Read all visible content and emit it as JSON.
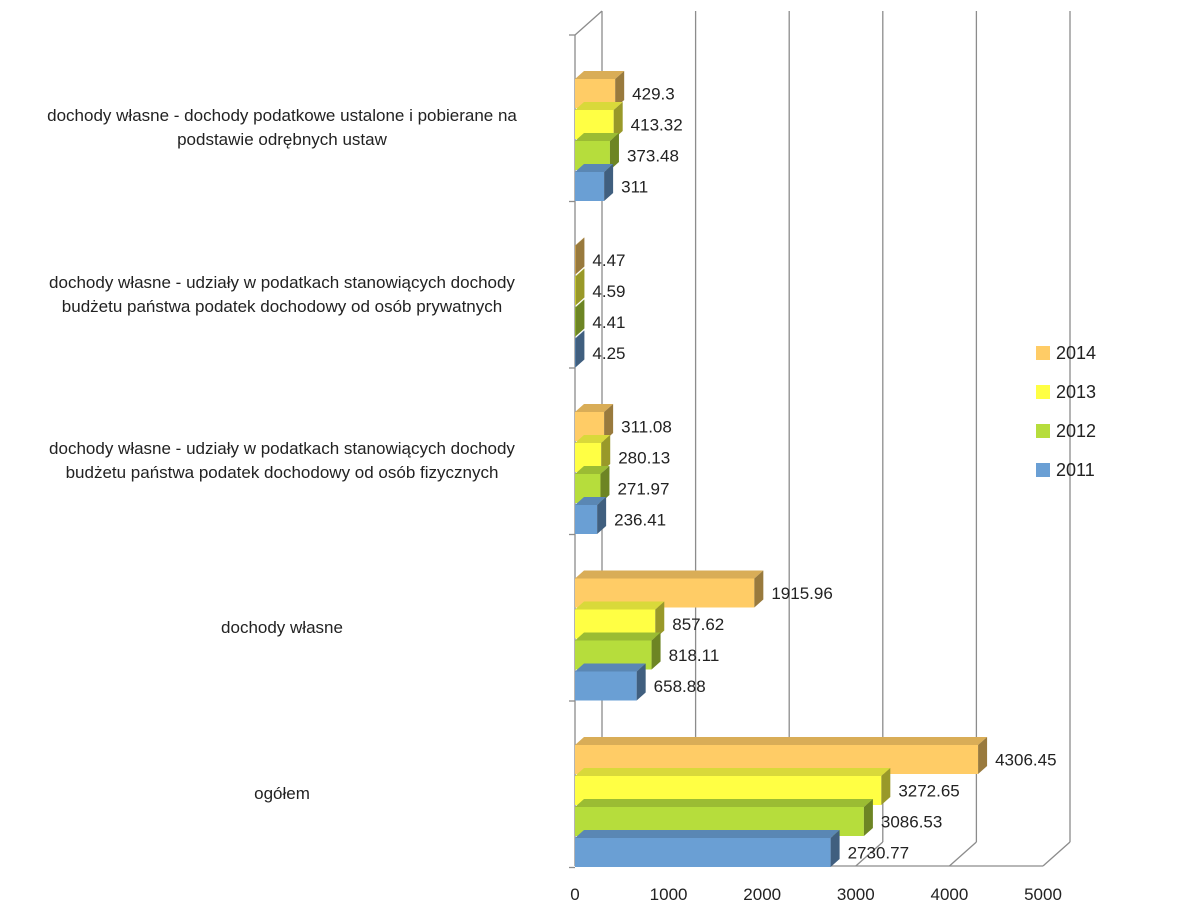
{
  "chart_data": {
    "type": "bar",
    "orientation": "horizontal",
    "categories": [
      "dochody własne - dochody podatkowe ustalone i pobierane na podstawie odrębnych ustaw",
      "dochody własne - udziały w podatkach stanowiących dochody budżetu państwa podatek dochodowy od osób prywatnych",
      "dochody własne - udziały w podatkach stanowiących dochody budżetu państwa podatek dochodowy od osób fizycznych",
      "dochody własne",
      "ogółem"
    ],
    "category_display": [
      "dochody własne - dochody podatkowe ustalone i pobierane na\npodstawie odrębnych ustaw",
      "dochody własne - udziały w podatkach stanowiących dochody\nbudżetu państwa podatek dochodowy od osób prywatnych",
      "dochody własne - udziały w podatkach stanowiących dochody\nbudżetu państwa podatek dochodowy od osób fizycznych",
      "dochody własne",
      "ogółem"
    ],
    "series": [
      {
        "name": "2014",
        "color": "#FFCC66",
        "values": [
          429.3,
          4.47,
          311.08,
          1915.96,
          4306.45
        ],
        "labels": [
          "429.3",
          "4.47",
          "311.08",
          "1915.96",
          "4306.45"
        ]
      },
      {
        "name": "2013",
        "color": "#FFFF44",
        "values": [
          413.32,
          4.59,
          280.13,
          857.62,
          3272.65
        ],
        "labels": [
          "413.32",
          "4.59",
          "280.13",
          "857.62",
          "3272.65"
        ]
      },
      {
        "name": "2012",
        "color": "#B6DD3C",
        "values": [
          373.48,
          4.41,
          271.97,
          818.11,
          3086.53
        ],
        "labels": [
          "373.48",
          "4.41",
          "271.97",
          "818.11",
          "3086.53"
        ]
      },
      {
        "name": "2011",
        "color": "#6A9FD4",
        "values": [
          311,
          4.25,
          236.41,
          658.88,
          2730.77
        ],
        "labels": [
          "311",
          "4.25",
          "236.41",
          "658.88",
          "2730.77"
        ]
      }
    ],
    "xlim": [
      0,
      5000
    ],
    "xticks": [
      "0",
      "1000",
      "2000",
      "3000",
      "4000",
      "5000"
    ],
    "grid": true,
    "legend_position": "right",
    "title": "",
    "xlabel": "",
    "ylabel": ""
  }
}
